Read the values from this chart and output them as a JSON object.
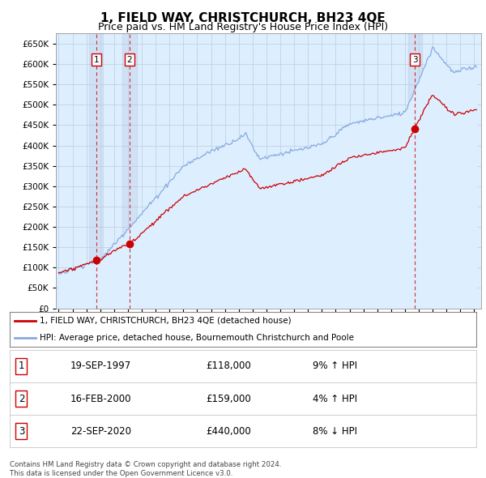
{
  "title": "1, FIELD WAY, CHRISTCHURCH, BH23 4QE",
  "subtitle": "Price paid vs. HM Land Registry's House Price Index (HPI)",
  "property_label": "1, FIELD WAY, CHRISTCHURCH, BH23 4QE (detached house)",
  "hpi_label": "HPI: Average price, detached house, Bournemouth Christchurch and Poole",
  "sale_years": [
    1997.72,
    2000.12,
    2020.72
  ],
  "sale_prices": [
    118000,
    159000,
    440000
  ],
  "property_color": "#cc0000",
  "hpi_color": "#88aadd",
  "hpi_fill_color": "#ddeeff",
  "grid_color": "#bbccdd",
  "vline_color": "#cc0000",
  "plot_bg_color": "#ddeeff",
  "ylim": [
    0,
    675000
  ],
  "yticks": [
    0,
    50000,
    100000,
    150000,
    200000,
    250000,
    300000,
    350000,
    400000,
    450000,
    500000,
    550000,
    600000,
    650000
  ],
  "xmin": 1994.8,
  "xmax": 2025.5,
  "row_data": [
    [
      1,
      "19-SEP-1997",
      "£118,000",
      "9% ↑ HPI"
    ],
    [
      2,
      "16-FEB-2000",
      "£159,000",
      "4% ↑ HPI"
    ],
    [
      3,
      "22-SEP-2020",
      "£440,000",
      "8% ↓ HPI"
    ]
  ],
  "footer": "Contains HM Land Registry data © Crown copyright and database right 2024.\nThis data is licensed under the Open Government Licence v3.0.",
  "title_fontsize": 11,
  "subtitle_fontsize": 9
}
